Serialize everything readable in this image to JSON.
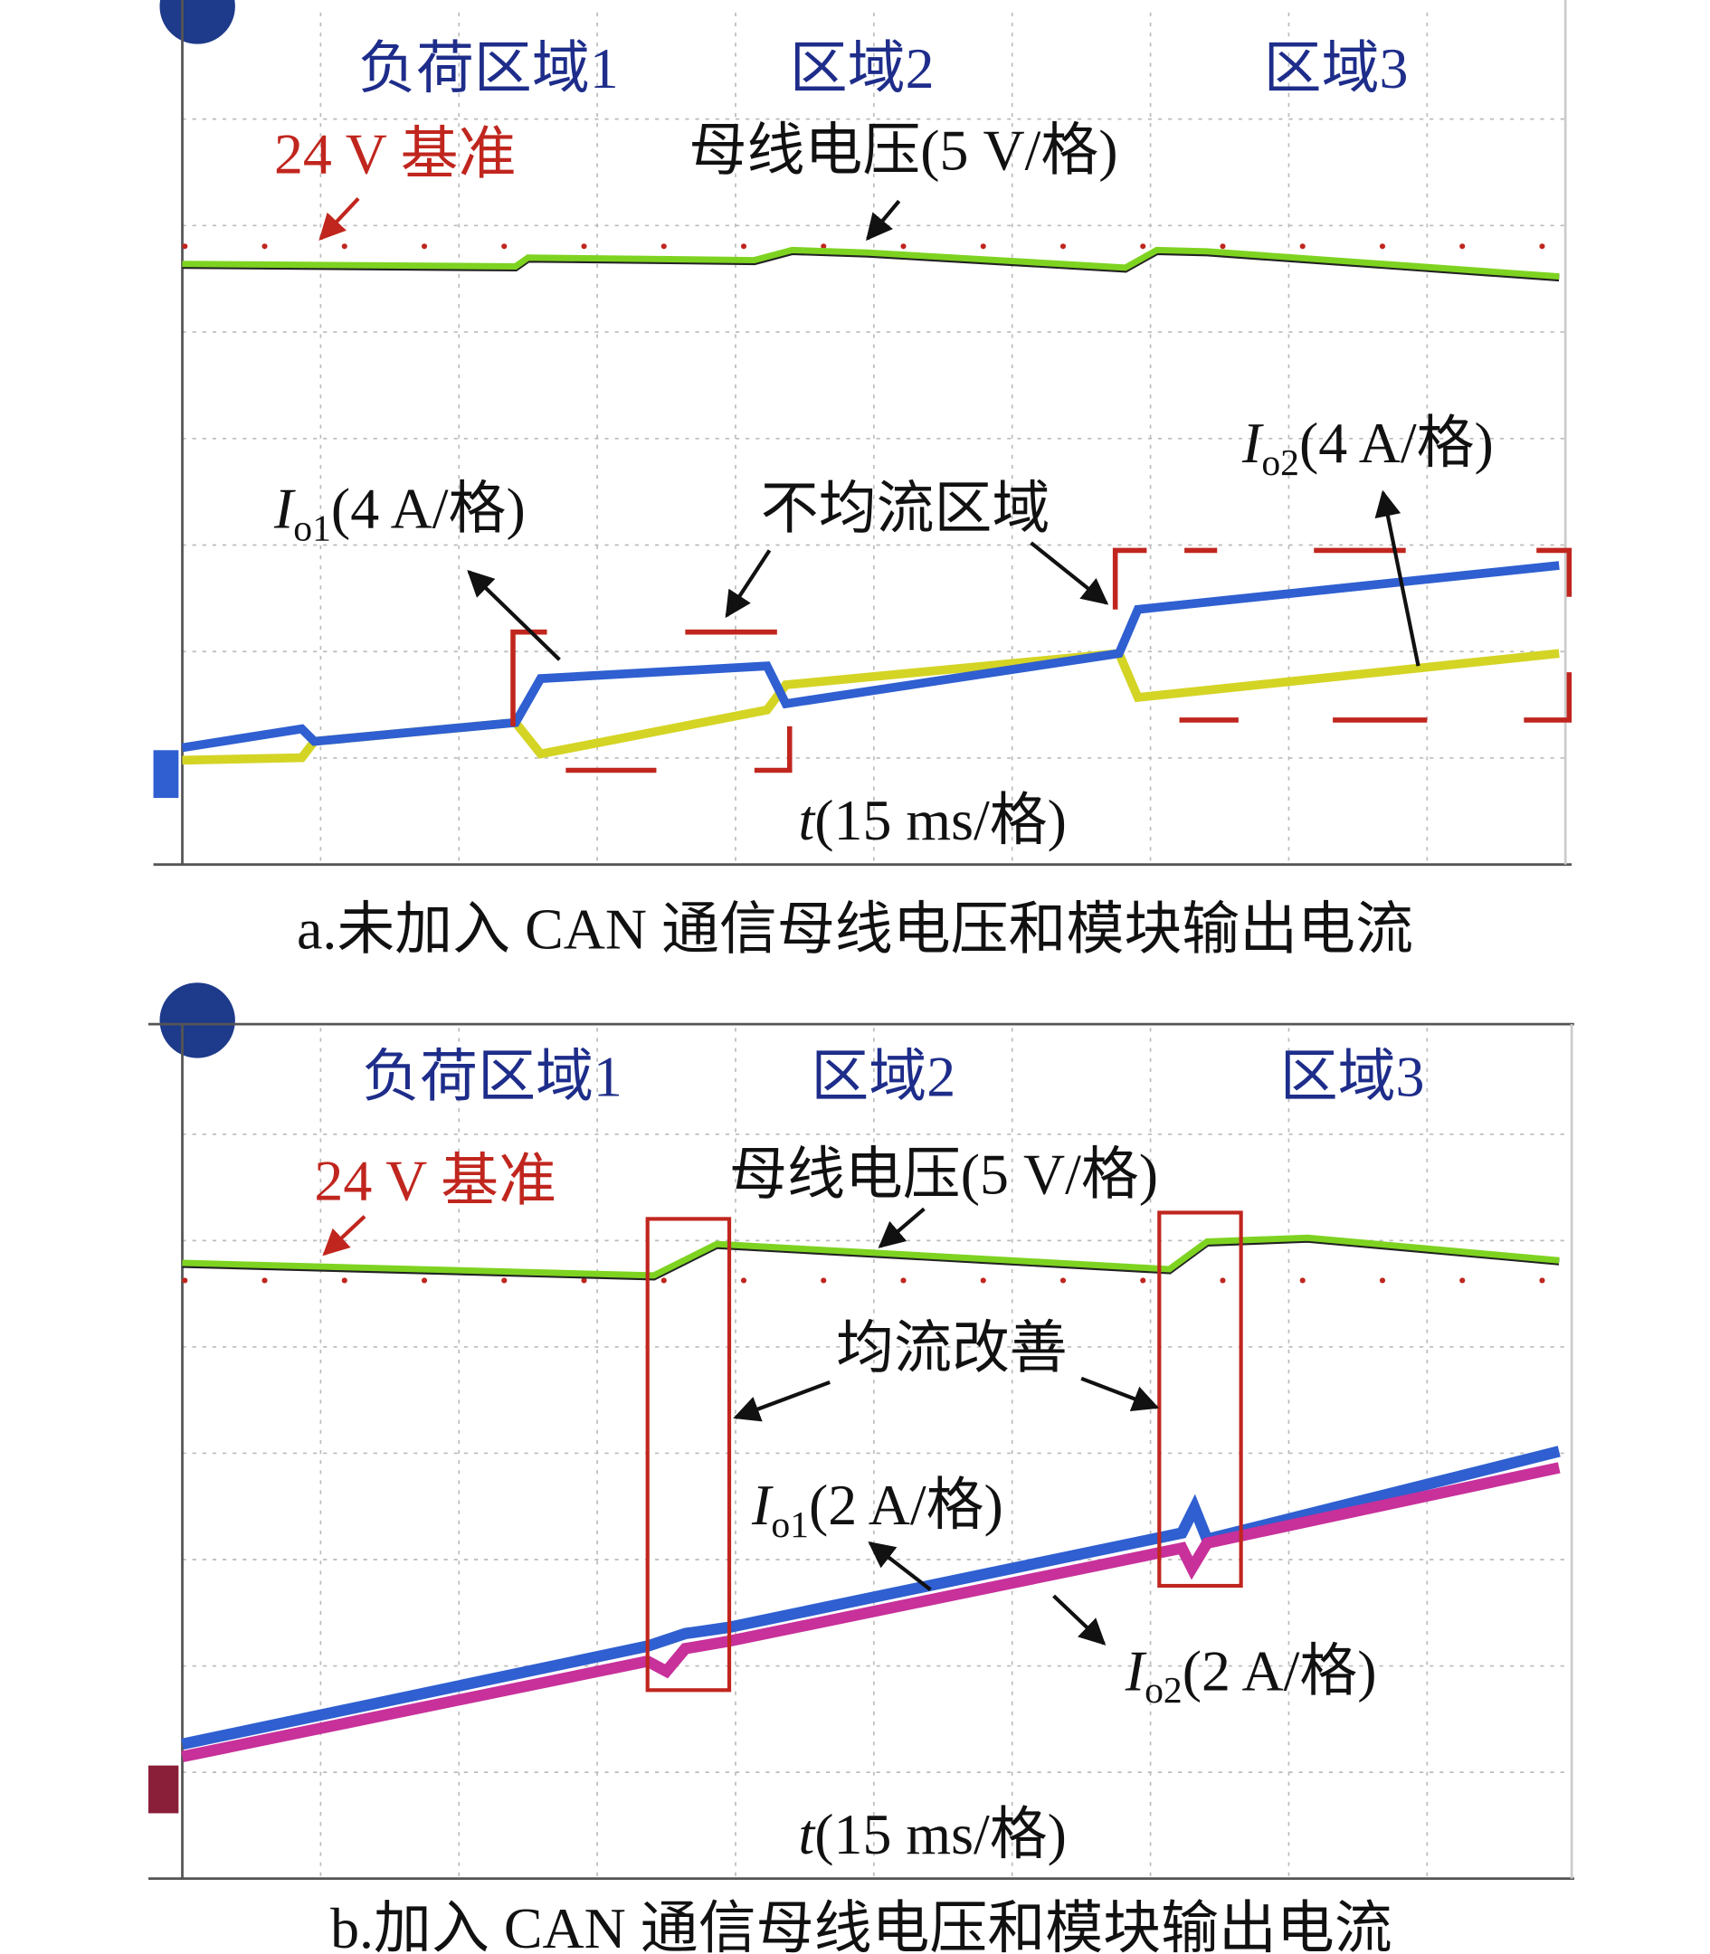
{
  "panels": [
    {
      "zone1": "负荷区域1",
      "zone2": "区域2",
      "zone3": "区域3",
      "reference": "24 V 基准",
      "bus_voltage": "母线电压(5 V/格)",
      "io1": {
        "symbol": "I",
        "sub": "o1",
        "scale": "(4 A/格)"
      },
      "io2": {
        "symbol": "I",
        "sub": "o2",
        "scale": "(4 A/格)"
      },
      "note": "不均流区域",
      "time": {
        "symbol": "t",
        "scale": "(15 ms/格)"
      },
      "caption": "a.未加入 CAN 通信母线电压和模块输出电流"
    },
    {
      "zone1": "负荷区域1",
      "zone2": "区域2",
      "zone3": "区域3",
      "reference": "24 V 基准",
      "bus_voltage": "母线电压(5 V/格)",
      "io1": {
        "symbol": "I",
        "sub": "o1",
        "scale": "(2 A/格)"
      },
      "io2": {
        "symbol": "I",
        "sub": "o2",
        "scale": "(2 A/格)"
      },
      "note": "均流改善",
      "time": {
        "symbol": "t",
        "scale": "(15 ms/格)"
      },
      "caption": "b.加入 CAN 通信母线电压和模块输出电流"
    }
  ]
}
